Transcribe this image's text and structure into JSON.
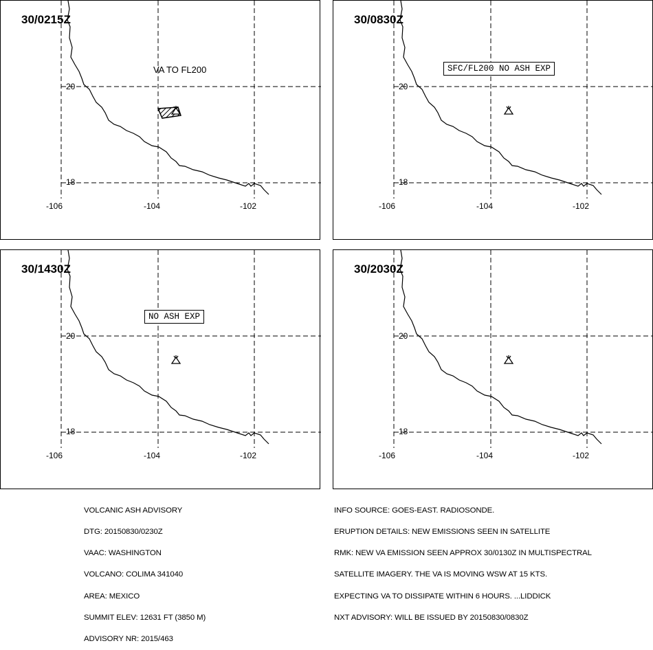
{
  "panels": [
    {
      "time": "30/0215Z",
      "annotation": "VA TO FL200",
      "annotation_style": "plain",
      "ash_area": true
    },
    {
      "time": "30/0830Z",
      "annotation": "SFC/FL200 NO ASH EXP",
      "annotation_style": "boxed",
      "ash_area": false
    },
    {
      "time": "30/1430Z",
      "annotation": "NO ASH EXP",
      "annotation_style": "boxed",
      "ash_area": false
    },
    {
      "time": "30/2030Z",
      "annotation": "",
      "annotation_style": "none",
      "ash_area": false
    }
  ],
  "axis": {
    "lat_labels": [
      "20",
      "18"
    ],
    "lon_labels": [
      "-106",
      "-104",
      "-102"
    ]
  },
  "volcano_icon": "volcano-icon",
  "advisory_left": [
    "VOLCANIC ASH ADVISORY",
    "DTG: 20150830/0230Z",
    "VAAC: WASHINGTON",
    "VOLCANO: COLIMA 341040",
    "AREA: MEXICO",
    "SUMMIT ELEV: 12631 FT (3850 M)",
    "ADVISORY NR: 2015/463"
  ],
  "advisory_right": [
    "INFO SOURCE: GOES-EAST. RADIOSONDE.",
    "ERUPTION DETAILS: NEW EMISSIONS SEEN IN SATELLITE",
    "RMK: NEW VA EMISSION SEEN APPROX 30/0130Z IN MULTISPECTRAL",
    "SATELLITE IMAGERY. THE VA IS MOVING WSW AT 15 KTS.",
    "EXPECTING VA TO DISSIPATE WITHIN 6 HOURS. ...LIDDICK",
    "NXT ADVISORY: WILL BE ISSUED BY 20150830/0830Z"
  ]
}
